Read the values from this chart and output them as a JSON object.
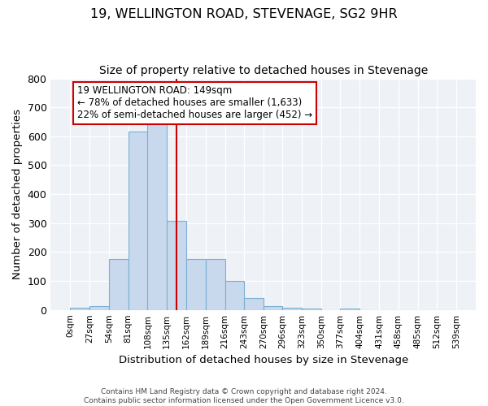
{
  "title": "19, WELLINGTON ROAD, STEVENAGE, SG2 9HR",
  "subtitle": "Size of property relative to detached houses in Stevenage",
  "xlabel": "Distribution of detached houses by size in Stevenage",
  "ylabel": "Number of detached properties",
  "bin_edges": [
    0,
    27,
    54,
    81,
    108,
    135,
    162,
    189,
    216,
    243,
    270,
    296,
    323,
    350,
    377,
    404,
    431,
    458,
    485,
    512,
    539
  ],
  "bin_counts": [
    8,
    13,
    175,
    617,
    652,
    307,
    175,
    175,
    100,
    40,
    14,
    8,
    5,
    0,
    6,
    0,
    0,
    0,
    0,
    0
  ],
  "bar_color": "#c8d8ed",
  "bar_edge_color": "#7bafd4",
  "property_size": 149,
  "vline_color": "#cc0000",
  "annotation_text": "19 WELLINGTON ROAD: 149sqm\n← 78% of detached houses are smaller (1,633)\n22% of semi-detached houses are larger (452) →",
  "annotation_box_color": "#ffffff",
  "annotation_box_edge_color": "#cc0000",
  "ylim": [
    0,
    800
  ],
  "yticks": [
    0,
    100,
    200,
    300,
    400,
    500,
    600,
    700,
    800
  ],
  "bg_color": "#eef2f7",
  "footer_text": "Contains HM Land Registry data © Crown copyright and database right 2024.\nContains public sector information licensed under the Open Government Licence v3.0.",
  "title_fontsize": 11.5,
  "subtitle_fontsize": 10,
  "xlabel_fontsize": 9.5,
  "ylabel_fontsize": 9.5,
  "annotation_fontsize": 8.5
}
